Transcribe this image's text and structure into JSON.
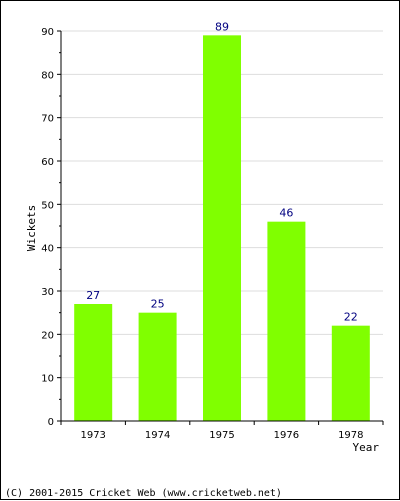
{
  "chart_data": {
    "type": "bar",
    "categories": [
      "1973",
      "1974",
      "1975",
      "1976",
      "1978"
    ],
    "values": [
      27,
      25,
      89,
      46,
      22
    ],
    "title": "",
    "xlabel": "Year",
    "ylabel": "Wickets",
    "ylim": [
      0,
      90
    ],
    "yticks": [
      0,
      10,
      20,
      30,
      40,
      50,
      60,
      70,
      80,
      90
    ],
    "grid": true,
    "legend": "none",
    "colors": {
      "bar": "#80ff00",
      "data_label": "#000080",
      "grid": "#dddddd",
      "axis": "#000000"
    }
  },
  "footer": {
    "copyright": "(C) 2001-2015 Cricket Web (www.cricketweb.net)"
  }
}
